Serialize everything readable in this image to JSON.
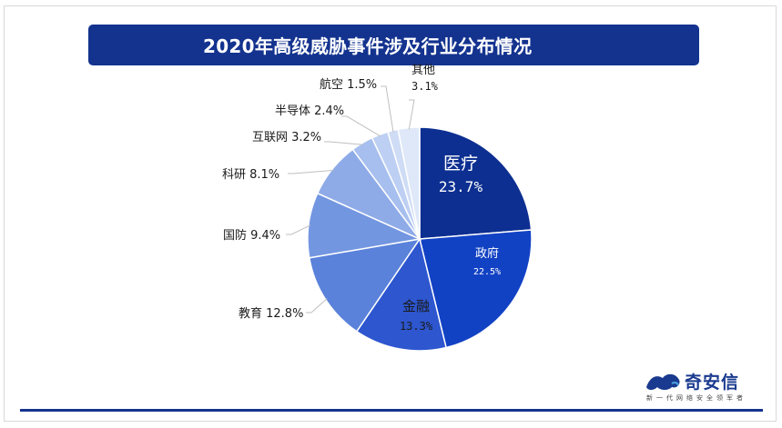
{
  "title": "2020年高级威胁事件涉及行业分布情况",
  "chart_data": {
    "type": "pie",
    "title": "2020年高级威胁事件涉及行业分布情况",
    "slices": [
      {
        "label": "医疗",
        "value": 23.7,
        "display": "23.7%",
        "color": "#0d2f91",
        "label_pos": "inside",
        "text_color": "#ffffff"
      },
      {
        "label": "政府",
        "value": 22.5,
        "display": "22.5%",
        "color": "#1242c4",
        "label_pos": "inside",
        "text_color": "#ffffff"
      },
      {
        "label": "金融",
        "value": 13.3,
        "display": "13.3%",
        "color": "#2d56cf",
        "label_pos": "inside",
        "text_color": "#1a1a1a"
      },
      {
        "label": "教育",
        "value": 12.8,
        "display": "12.8%",
        "color": "#5a82db",
        "label_pos": "outside",
        "text_color": "#1a1a1a"
      },
      {
        "label": "国防",
        "value": 9.4,
        "display": "9.4%",
        "color": "#7396e1",
        "label_pos": "outside",
        "text_color": "#1a1a1a"
      },
      {
        "label": "科研",
        "value": 8.1,
        "display": "8.1%",
        "color": "#8eabe8",
        "label_pos": "outside",
        "text_color": "#1a1a1a"
      },
      {
        "label": "互联网",
        "value": 3.2,
        "display": "3.2%",
        "color": "#a7bfee",
        "label_pos": "outside",
        "text_color": "#1a1a1a"
      },
      {
        "label": "半导体",
        "value": 2.4,
        "display": "2.4%",
        "color": "#bdcff2",
        "label_pos": "outside",
        "text_color": "#1a1a1a"
      },
      {
        "label": "航空",
        "value": 1.5,
        "display": "1.5%",
        "color": "#cfdcf5",
        "label_pos": "outside",
        "text_color": "#1a1a1a"
      },
      {
        "label": "其他",
        "value": 3.1,
        "display": "3.1%",
        "color": "#dfe8f8",
        "label_pos": "outside",
        "text_color": "#1a1a1a"
      }
    ]
  },
  "logo": {
    "text": "奇安信",
    "tagline": "新一代网络安全领军者"
  }
}
